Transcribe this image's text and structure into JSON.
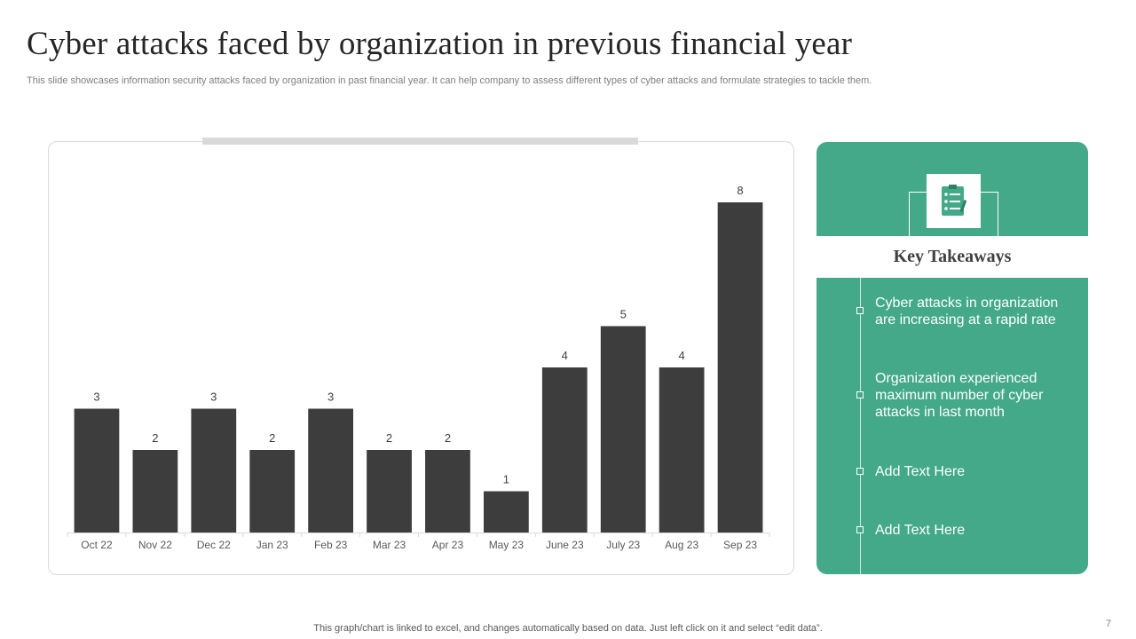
{
  "slide": {
    "title": "Cyber attacks faced by organization in previous financial year",
    "subtitle": "This slide showcases information security attacks faced by organization in past financial year. It can help company to  assess different types of cyber attacks and formulate strategies to tackle them.",
    "footer_note": "This graph/chart is linked to excel,  and changes automatically based on data. Just left click on it and select “edit data”.",
    "page_number": "7"
  },
  "colors": {
    "bar": "#3d3d3d",
    "accent": "#43a988"
  },
  "takeaways": {
    "icon": "checklist-icon",
    "heading": "Key Takeaways",
    "items": [
      "Cyber attacks in organization are increasing at a rapid rate",
      "Organization experienced maximum number of cyber attacks in last month",
      "Add Text Here",
      "Add Text Here"
    ]
  },
  "chart_data": {
    "type": "bar",
    "title": "",
    "xlabel": "",
    "ylabel": "",
    "categories": [
      "Oct 22",
      "Nov 22",
      "Dec 22",
      "Jan 23",
      "Feb 23",
      "Mar 23",
      "Apr 23",
      "May 23",
      "June 23",
      "July 23",
      "Aug 23",
      "Sep 23"
    ],
    "values": [
      3,
      2,
      3,
      2,
      3,
      2,
      2,
      1,
      4,
      5,
      4,
      8
    ],
    "data_labels": true,
    "ylim": [
      0,
      8
    ],
    "grid": false,
    "legend": "none"
  }
}
